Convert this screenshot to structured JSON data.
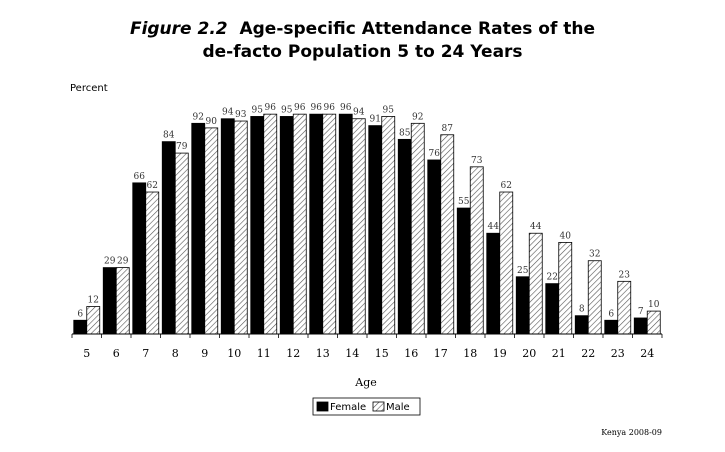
{
  "title": {
    "figure": "Figure 2.2",
    "line1": "Age-specific Attendance Rates of the",
    "line2": "de-facto Population 5 to 24 Years"
  },
  "credit": "Kenya 2008-09",
  "chart_data": {
    "type": "bar",
    "ylabel": "Percent",
    "xlabel": "Age",
    "categories": [
      "5",
      "6",
      "7",
      "8",
      "9",
      "10",
      "11",
      "12",
      "13",
      "14",
      "15",
      "16",
      "17",
      "18",
      "19",
      "20",
      "21",
      "22",
      "23",
      "24"
    ],
    "series": [
      {
        "name": "Female",
        "color": "#000000",
        "pattern": "solid",
        "values": [
          6,
          29,
          66,
          84,
          92,
          94,
          95,
          95,
          96,
          96,
          91,
          85,
          76,
          55,
          44,
          25,
          22,
          8,
          6,
          7
        ]
      },
      {
        "name": "Male",
        "color": "#ffffff",
        "pattern": "hatched",
        "values": [
          12,
          29,
          62,
          79,
          90,
          93,
          96,
          96,
          96,
          94,
          95,
          92,
          87,
          73,
          62,
          44,
          40,
          32,
          23,
          10
        ]
      }
    ],
    "ylim": [
      0,
      100
    ],
    "legend_position": "bottom-center",
    "grid": false
  }
}
